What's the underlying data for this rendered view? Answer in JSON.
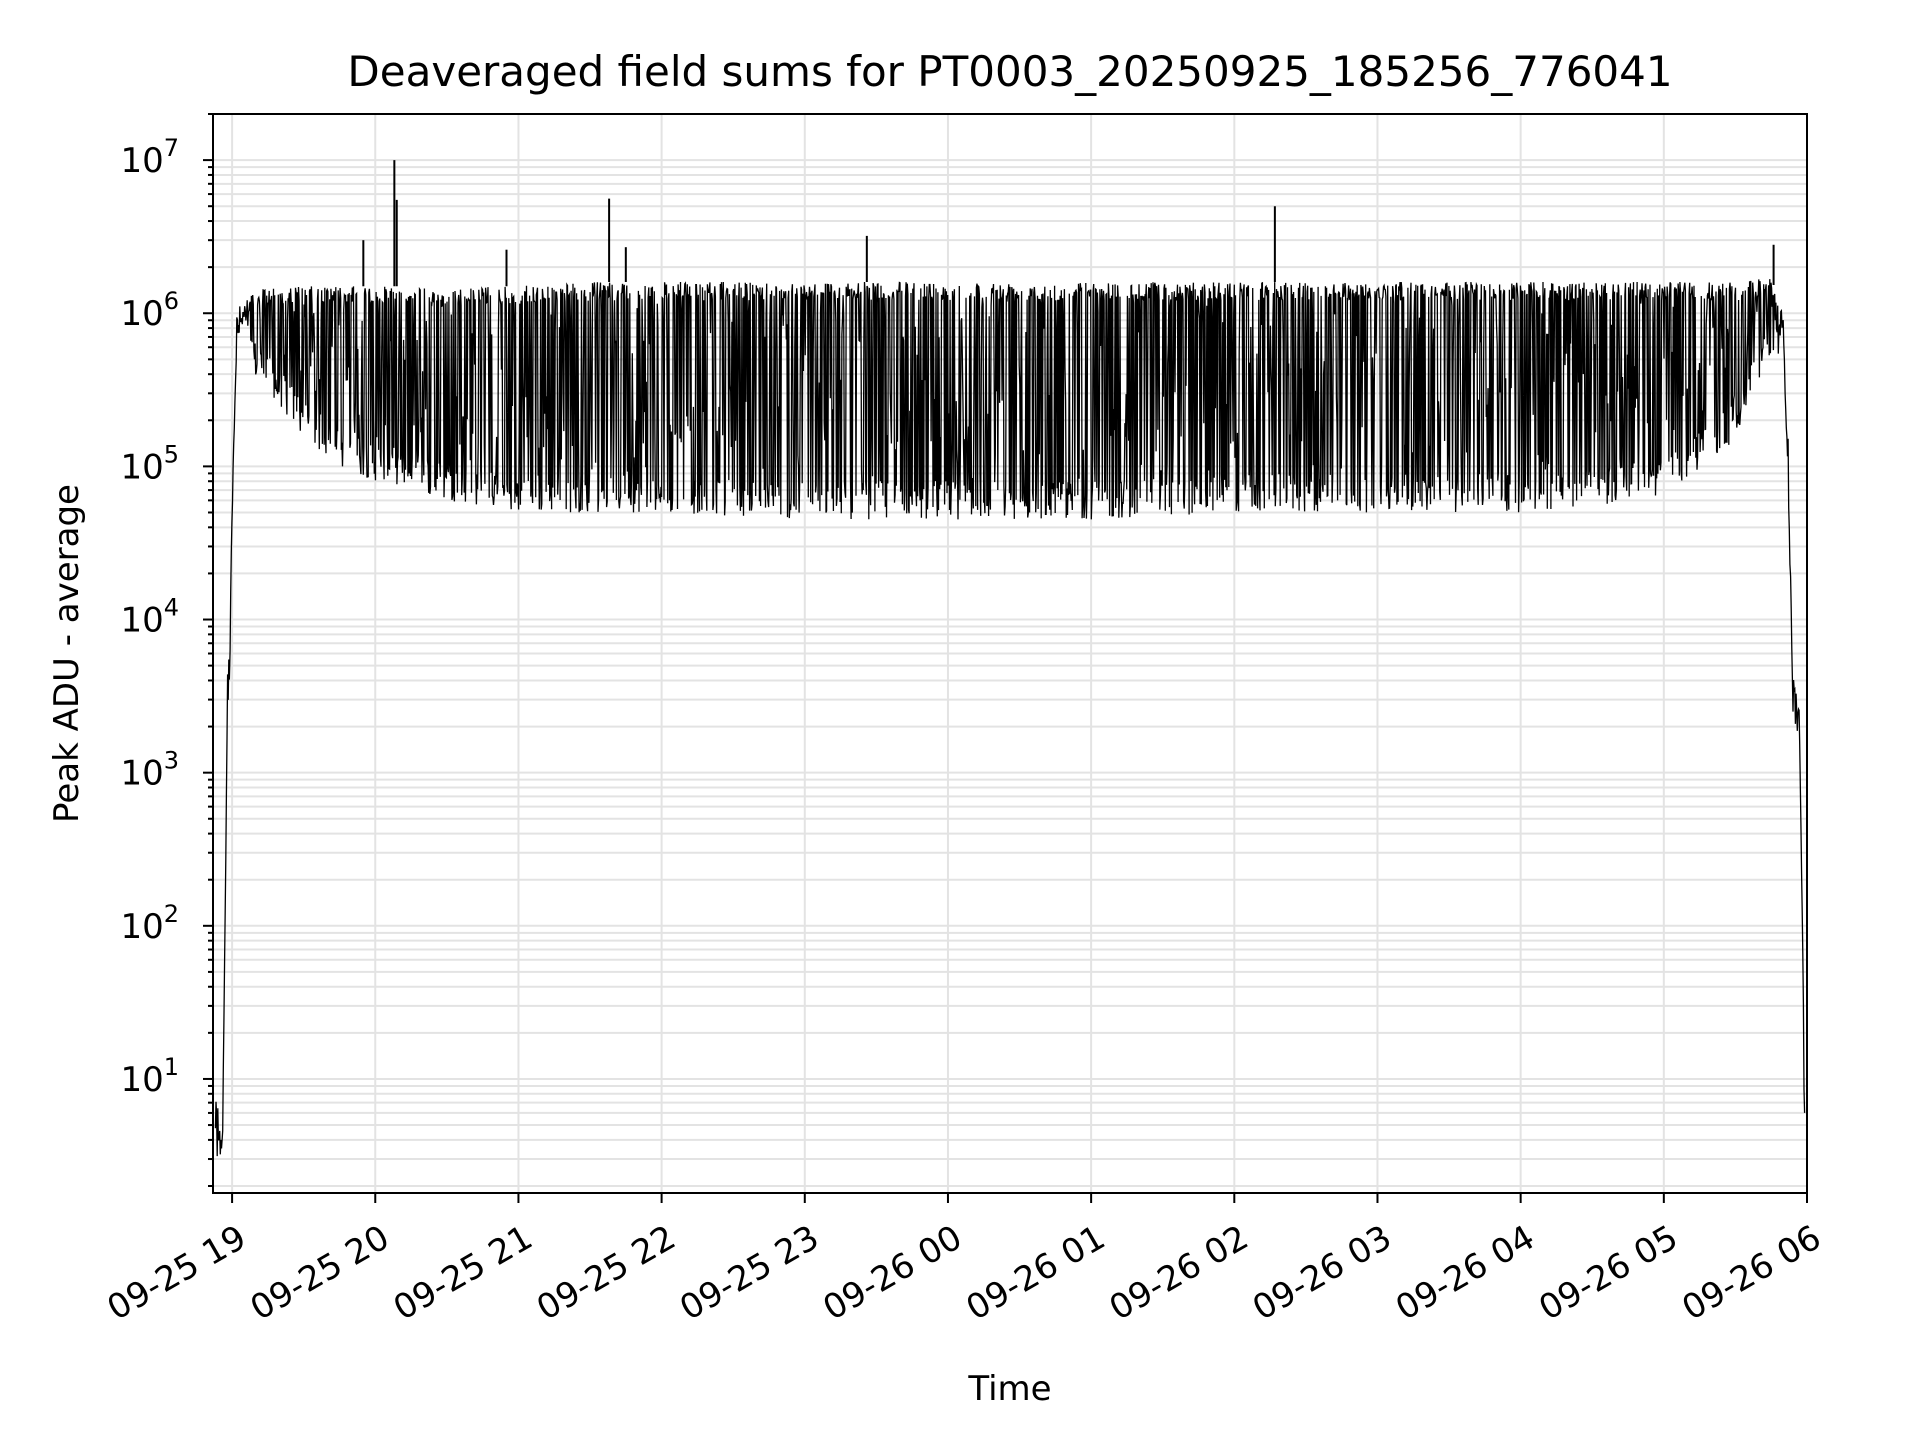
{
  "chart_data": {
    "type": "line",
    "title": "Deaveraged field sums for PT0003_20250925_185256_776041",
    "xlabel": "Time",
    "ylabel": "Peak ADU - average",
    "y_scale": "log",
    "ylim": [
      1.8,
      20000000
    ],
    "xlim": [
      "2025-09-25 18:52",
      "2025-09-26 06:00"
    ],
    "grid": "major and minor, both axes",
    "line_color": "#000000",
    "x_ticks": [
      "09-25 19",
      "09-25 20",
      "09-25 21",
      "09-25 22",
      "09-25 23",
      "09-26 00",
      "09-26 01",
      "09-26 02",
      "09-26 03",
      "09-26 04",
      "09-26 05",
      "09-26 06"
    ],
    "y_ticks": [
      {
        "value": 10,
        "base": "10",
        "exp": "1"
      },
      {
        "value": 100,
        "base": "10",
        "exp": "2"
      },
      {
        "value": 1000,
        "base": "10",
        "exp": "3"
      },
      {
        "value": 10000,
        "base": "10",
        "exp": "4"
      },
      {
        "value": 100000,
        "base": "10",
        "exp": "5"
      },
      {
        "value": 1000000,
        "base": "10",
        "exp": "6"
      },
      {
        "value": 10000000,
        "base": "10",
        "exp": "7"
      }
    ],
    "series": [
      {
        "envelope": {
          "x": [
            "2025-09-25 18:53",
            "2025-09-25 18:56",
            "2025-09-25 18:58",
            "2025-09-25 18:59",
            "2025-09-25 19:00",
            "2025-09-25 19:02",
            "2025-09-25 19:05",
            "2025-09-25 19:08",
            "2025-09-25 19:15",
            "2025-09-25 19:30",
            "2025-09-25 19:45",
            "2025-09-25 20:00",
            "2025-09-25 20:15",
            "2025-09-25 20:30",
            "2025-09-25 20:45",
            "2025-09-25 21:00",
            "2025-09-25 21:30",
            "2025-09-25 22:00",
            "2025-09-25 23:00",
            "2025-09-26 00:00",
            "2025-09-26 01:00",
            "2025-09-26 02:00",
            "2025-09-26 03:00",
            "2025-09-26 04:00",
            "2025-09-26 04:30",
            "2025-09-26 05:00",
            "2025-09-26 05:30",
            "2025-09-26 05:45",
            "2025-09-26 05:50",
            "2025-09-26 05:52",
            "2025-09-26 05:54",
            "2025-09-26 05:57",
            "2025-09-26 05:59"
          ],
          "high": [
            4,
            4,
            2500,
            4000,
            60000,
            800000,
            1300000,
            1300000,
            1500000,
            1500000,
            1500000,
            1500000,
            1500000,
            1400000,
            1500000,
            1500000,
            1600000,
            1600000,
            1600000,
            1600000,
            1600000,
            1600000,
            1600000,
            1600000,
            1600000,
            1600000,
            1600000,
            1700000,
            1000000,
            100000,
            4500,
            2500,
            4
          ],
          "low": [
            4,
            4,
            2500,
            4000,
            60000,
            600000,
            700000,
            400000,
            300000,
            150000,
            100000,
            80000,
            70000,
            60000,
            55000,
            50000,
            50000,
            50000,
            45000,
            45000,
            45000,
            50000,
            50000,
            50000,
            55000,
            60000,
            150000,
            500000,
            500000,
            100000,
            2500,
            1500,
            4
          ]
        },
        "spikes": [
          {
            "x": "2025-09-25 19:55",
            "y": 3000000
          },
          {
            "x": "2025-09-25 20:08",
            "y": 10000000
          },
          {
            "x": "2025-09-25 20:09",
            "y": 5500000
          },
          {
            "x": "2025-09-25 20:55",
            "y": 2600000
          },
          {
            "x": "2025-09-25 21:38",
            "y": 5600000
          },
          {
            "x": "2025-09-25 21:45",
            "y": 2700000
          },
          {
            "x": "2025-09-25 23:26",
            "y": 3200000
          },
          {
            "x": "2025-09-26 02:17",
            "y": 5000000
          },
          {
            "x": "2025-09-26 05:46",
            "y": 2800000
          }
        ]
      }
    ]
  }
}
